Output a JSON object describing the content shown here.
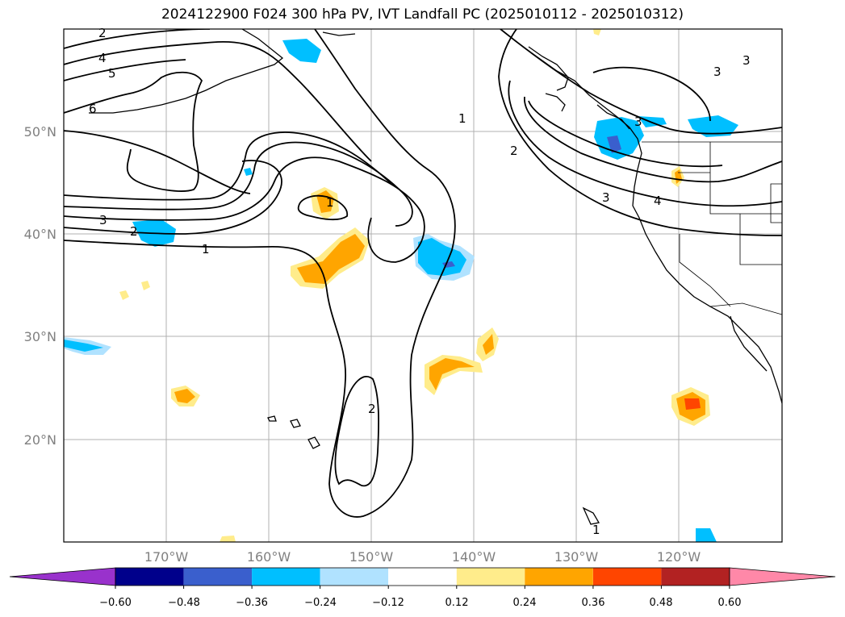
{
  "title": "2024122900 F024 300 hPa PV, IVT Landfall PC (2025010112 - 2025010312)",
  "map": {
    "projection": "plate-carree",
    "lon_range": [
      -180,
      -110
    ],
    "lat_range": [
      10,
      60
    ],
    "gridlines": true,
    "lat_labels": [
      "50°N",
      "40°N",
      "30°N",
      "20°N"
    ],
    "lon_labels": [
      "170°W",
      "160°W",
      "150°W",
      "140°W",
      "130°W",
      "120°W"
    ],
    "pv_contour_labels": [
      "2",
      "4",
      "5",
      "6",
      "3",
      "2",
      "1",
      "1",
      "1",
      "2",
      "3",
      "4",
      "3",
      "3",
      "3",
      "2",
      "1"
    ]
  },
  "colorbar": {
    "ticks": [
      "−0.60",
      "−0.48",
      "−0.36",
      "−0.24",
      "−0.12",
      "0.12",
      "0.24",
      "0.36",
      "0.48",
      "0.60"
    ],
    "colors": [
      "#9932cc",
      "#00008b",
      "#3a5fcd",
      "#00bfff",
      "#b0e2ff",
      "#ffffff",
      "#ffec8b",
      "#ffa500",
      "#ff4500",
      "#b22222",
      "#ff88a8"
    ],
    "extend": "both"
  }
}
